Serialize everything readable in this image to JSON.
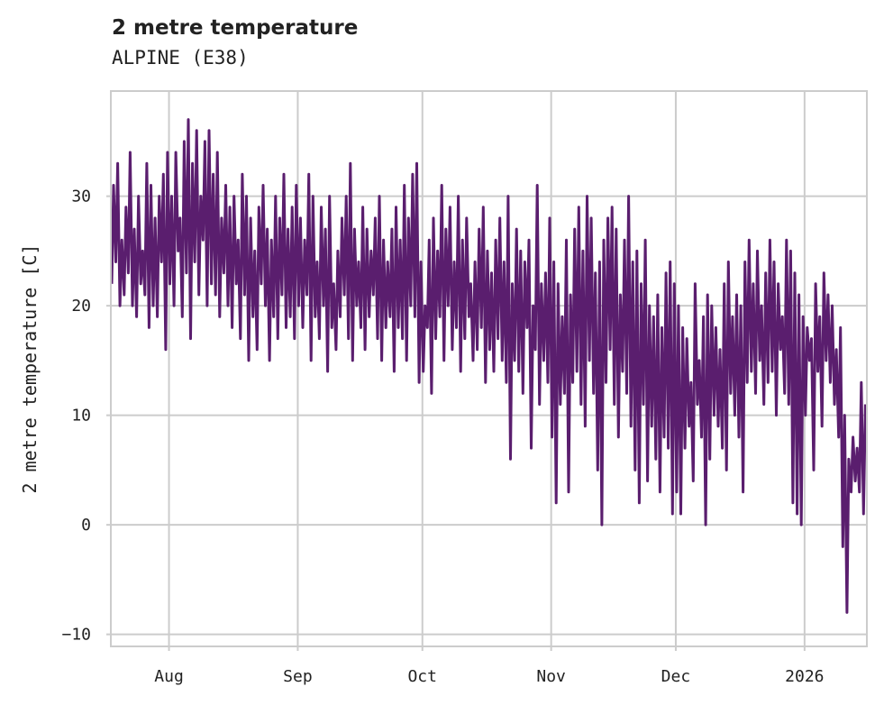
{
  "chart_data": {
    "type": "line",
    "title": "2 metre temperature",
    "subtitle": "ALPINE (E38)",
    "xlabel": "",
    "ylabel": "2 metre temperature [C]",
    "start_date": "2025-07-18",
    "xlim_days": [
      0,
      182
    ],
    "ylim": [
      -11.1,
      39.6
    ],
    "yticks": [
      -10,
      0,
      10,
      20,
      30
    ],
    "ytick_labels": [
      "−10",
      "0",
      "10",
      "20",
      "30"
    ],
    "xticks": [
      {
        "day": 14,
        "label": "Aug"
      },
      {
        "day": 45,
        "label": "Sep"
      },
      {
        "day": 75,
        "label": "Oct"
      },
      {
        "day": 106,
        "label": "Nov"
      },
      {
        "day": 136,
        "label": "Dec"
      },
      {
        "day": 167,
        "label": "2026"
      }
    ],
    "grid": true,
    "line_color": "#5a1e6e",
    "series": [
      {
        "name": "2 metre temperature",
        "daily_max": [
          31,
          33,
          26,
          29,
          34,
          27,
          30,
          25,
          33,
          31,
          28,
          30,
          32,
          34,
          30,
          34,
          28,
          35,
          37,
          33,
          36,
          30,
          35,
          36,
          32,
          34,
          28,
          31,
          29,
          30,
          26,
          32,
          30,
          28,
          25,
          29,
          31,
          27,
          26,
          30,
          28,
          32,
          27,
          29,
          31,
          28,
          26,
          32,
          30,
          24,
          29,
          27,
          30,
          22,
          25,
          28,
          30,
          33,
          27,
          24,
          29,
          27,
          25,
          28,
          30,
          26,
          24,
          27,
          29,
          26,
          31,
          28,
          32,
          33,
          24,
          20,
          26,
          28,
          25,
          31,
          27,
          29,
          24,
          30,
          26,
          28,
          22,
          24,
          27,
          29,
          25,
          23,
          26,
          28,
          24,
          30,
          22,
          27,
          25,
          24,
          26,
          20,
          31,
          22,
          23,
          28,
          24,
          22,
          19,
          26,
          21,
          27,
          29,
          25,
          30,
          28,
          23,
          24,
          26,
          28,
          29,
          27,
          21,
          26,
          30,
          24,
          25,
          22,
          26,
          20,
          19,
          21,
          18,
          23,
          24,
          22,
          20,
          18,
          17,
          13,
          22,
          15,
          19,
          21,
          20,
          18,
          16,
          22,
          24,
          19,
          21,
          20,
          24,
          26,
          22,
          25,
          20,
          23,
          26,
          24,
          22,
          19,
          26,
          25,
          23,
          21,
          19,
          18,
          17,
          22,
          19,
          23,
          21,
          20,
          16,
          18,
          10,
          6,
          8,
          7,
          13,
          11
        ],
        "daily_min": [
          22,
          24,
          20,
          21,
          23,
          20,
          19,
          22,
          21,
          18,
          20,
          19,
          24,
          16,
          22,
          20,
          25,
          19,
          23,
          17,
          24,
          21,
          26,
          20,
          22,
          21,
          19,
          23,
          20,
          18,
          22,
          17,
          21,
          15,
          19,
          16,
          22,
          20,
          15,
          19,
          17,
          21,
          18,
          19,
          17,
          20,
          18,
          21,
          15,
          19,
          17,
          20,
          14,
          18,
          16,
          19,
          21,
          17,
          15,
          20,
          18,
          16,
          19,
          21,
          17,
          15,
          18,
          19,
          14,
          18,
          17,
          15,
          20,
          19,
          13,
          14,
          18,
          12,
          17,
          19,
          15,
          20,
          16,
          18,
          14,
          17,
          19,
          15,
          16,
          18,
          13,
          16,
          14,
          17,
          15,
          13,
          6,
          15,
          14,
          12,
          18,
          7,
          16,
          11,
          15,
          13,
          8,
          2,
          11,
          12,
          3,
          13,
          14,
          11,
          9,
          15,
          12,
          5,
          0,
          13,
          16,
          11,
          8,
          14,
          12,
          9,
          5,
          2,
          11,
          4,
          9,
          6,
          3,
          8,
          7,
          1,
          3,
          1,
          7,
          9,
          4,
          11,
          8,
          0,
          6,
          10,
          9,
          7,
          5,
          12,
          10,
          8,
          3,
          13,
          14,
          12,
          15,
          11,
          13,
          14,
          10,
          16,
          12,
          11,
          2,
          1,
          0,
          10,
          15,
          5,
          14,
          9,
          15,
          13,
          11,
          8,
          -2,
          -8,
          3,
          4,
          3,
          1
        ]
      }
    ]
  }
}
